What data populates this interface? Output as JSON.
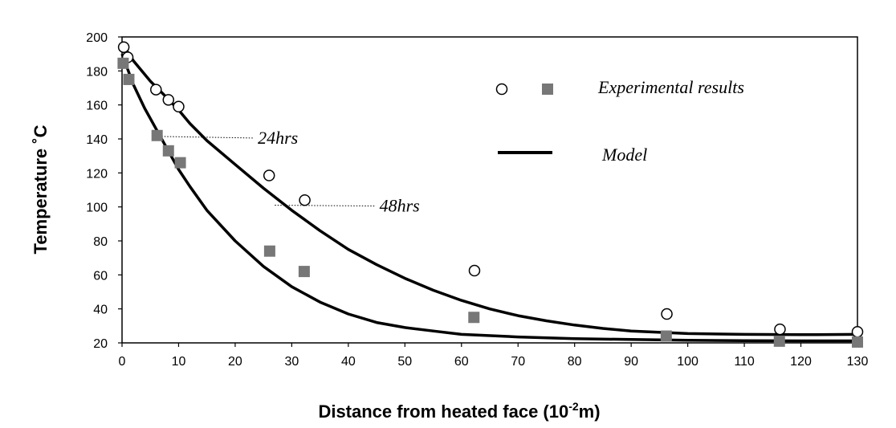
{
  "chart_data": {
    "type": "scatter",
    "title": "",
    "xlabel": "Distance from heated face (10",
    "xlabel_sup": "-2",
    "xlabel_tail": "m)",
    "ylabel": "Temperature ˚C",
    "xlim": [
      0,
      130
    ],
    "ylim": [
      20,
      200
    ],
    "xticks": [
      0,
      10,
      20,
      30,
      40,
      50,
      60,
      70,
      80,
      90,
      100,
      110,
      120,
      130
    ],
    "yticks": [
      20,
      40,
      60,
      80,
      100,
      120,
      140,
      160,
      180,
      200
    ],
    "legend": {
      "position": "top-right",
      "experimental_label": "Experimental results",
      "model_label": "Model"
    },
    "annotations": [
      {
        "text": "24hrs",
        "series": "24hrs",
        "anchor_x": 6,
        "anchor_y": 141.5,
        "text_x": 24,
        "text_y": 141
      },
      {
        "text": "48hrs",
        "series": "48hrs",
        "anchor_x": 27,
        "anchor_y": 101,
        "text_x": 45.5,
        "text_y": 101
      }
    ],
    "series": [
      {
        "name": "48hrs",
        "marker": "open-circle",
        "experimental": [
          [
            0.3,
            194
          ],
          [
            1,
            188
          ],
          [
            6,
            169
          ],
          [
            8.2,
            163
          ],
          [
            10,
            159
          ],
          [
            26,
            118.5
          ],
          [
            32.3,
            104
          ],
          [
            62.3,
            62.5
          ],
          [
            96.3,
            37
          ],
          [
            116.3,
            28
          ],
          [
            130,
            26.5
          ]
        ],
        "model": [
          [
            0,
            196
          ],
          [
            2,
            186
          ],
          [
            5,
            174
          ],
          [
            8,
            164
          ],
          [
            10,
            157
          ],
          [
            12,
            149
          ],
          [
            15,
            139
          ],
          [
            20,
            125
          ],
          [
            25,
            111
          ],
          [
            30,
            98
          ],
          [
            35,
            86
          ],
          [
            40,
            75
          ],
          [
            45,
            66
          ],
          [
            50,
            58
          ],
          [
            55,
            51
          ],
          [
            60,
            45
          ],
          [
            65,
            40
          ],
          [
            70,
            36
          ],
          [
            75,
            33
          ],
          [
            80,
            30.5
          ],
          [
            85,
            28.5
          ],
          [
            90,
            27
          ],
          [
            100,
            25.5
          ],
          [
            110,
            25
          ],
          [
            120,
            24.8
          ],
          [
            130,
            25
          ]
        ]
      },
      {
        "name": "24hrs",
        "marker": "gray-square",
        "experimental": [
          [
            0.2,
            184.5
          ],
          [
            1.2,
            175
          ],
          [
            6.2,
            142
          ],
          [
            8.2,
            133
          ],
          [
            10.3,
            126
          ],
          [
            26.1,
            74
          ],
          [
            32.2,
            62
          ],
          [
            62.2,
            35
          ],
          [
            96.2,
            24
          ],
          [
            116.2,
            21
          ],
          [
            130,
            20.5
          ]
        ],
        "model": [
          [
            0,
            190
          ],
          [
            2,
            172
          ],
          [
            4,
            158
          ],
          [
            6,
            146
          ],
          [
            8,
            134
          ],
          [
            10,
            122
          ],
          [
            12,
            112
          ],
          [
            15,
            98
          ],
          [
            20,
            80
          ],
          [
            25,
            65
          ],
          [
            30,
            53
          ],
          [
            35,
            44
          ],
          [
            40,
            37
          ],
          [
            45,
            32
          ],
          [
            50,
            29
          ],
          [
            55,
            27
          ],
          [
            60,
            25
          ],
          [
            70,
            23.5
          ],
          [
            80,
            22.5
          ],
          [
            90,
            22
          ],
          [
            100,
            21.5
          ],
          [
            110,
            21.3
          ],
          [
            120,
            21.2
          ],
          [
            130,
            21.2
          ]
        ]
      }
    ]
  }
}
